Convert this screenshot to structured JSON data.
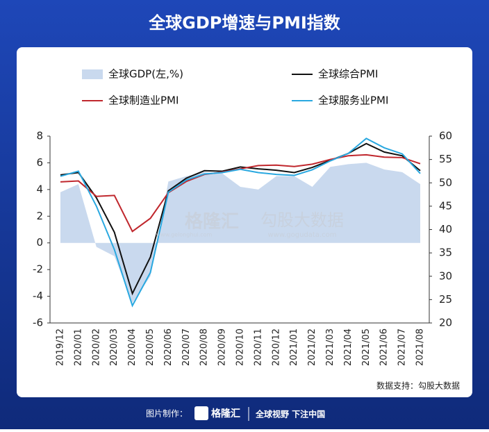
{
  "chart_data": {
    "type": "line",
    "title": "全球GDP增速与PMI指数",
    "categories": [
      "2019/12",
      "2020/01",
      "2020/02",
      "2020/03",
      "2020/04",
      "2020/05",
      "2020/06",
      "2020/07",
      "2020/08",
      "2020/09",
      "2020/10",
      "2020/11",
      "2020/12",
      "2021/01",
      "2021/02",
      "2021/03",
      "2021/04",
      "2021/05",
      "2021/06",
      "2021/07",
      "2021/08"
    ],
    "series": [
      {
        "name": "全球GDP(左,%)",
        "style": "area",
        "axis": "y",
        "color": "#c9d9ee",
        "values": [
          3.8,
          4.4,
          -0.3,
          -1.0,
          -4.5,
          -2.5,
          4.6,
          5.0,
          5.3,
          5.2,
          4.2,
          4.0,
          5.0,
          5.0,
          4.2,
          5.7,
          5.9,
          6.0,
          5.5,
          5.3,
          4.4
        ]
      },
      {
        "name": "全球综合PMI",
        "style": "line",
        "axis": "y2",
        "color": "#111111",
        "values": [
          51.7,
          52.2,
          46.8,
          39.4,
          26.3,
          34.1,
          48.3,
          51.0,
          52.6,
          52.5,
          53.4,
          53.0,
          52.7,
          52.2,
          53.3,
          54.8,
          56.3,
          58.4,
          56.6,
          55.8,
          52.6
        ]
      },
      {
        "name": "全球制造业PMI",
        "style": "line",
        "axis": "y2",
        "color": "#c0272d",
        "values": [
          50.2,
          50.4,
          47.1,
          47.3,
          39.6,
          42.4,
          47.9,
          50.3,
          51.8,
          52.3,
          53.0,
          53.7,
          53.8,
          53.5,
          54.0,
          55.0,
          55.8,
          56.0,
          55.5,
          55.4,
          54.1
        ]
      },
      {
        "name": "全球服务业PMI",
        "style": "line",
        "axis": "y2",
        "color": "#29a8e0",
        "values": [
          51.4,
          52.5,
          45.0,
          35.7,
          23.7,
          30.8,
          48.0,
          50.6,
          51.9,
          52.2,
          52.9,
          52.2,
          51.8,
          51.6,
          52.8,
          54.7,
          56.3,
          59.5,
          57.5,
          56.2,
          52.0
        ]
      }
    ],
    "ylim": [
      -6,
      8
    ],
    "yticks": [
      -6,
      -4,
      -2,
      0,
      2,
      4,
      6,
      8
    ],
    "y2lim": [
      20,
      60
    ],
    "y2ticks": [
      20,
      25,
      30,
      35,
      40,
      45,
      50,
      55,
      60
    ],
    "source": "数据支持：勾股大数据",
    "watermarks": [
      "格隆汇",
      "www.gelonghui.com",
      "勾股大数据",
      "www.gogudata.com"
    ],
    "footer": {
      "made_by": "图片制作：",
      "brand": "格隆汇",
      "slogan": "全球视野 下注中国"
    }
  }
}
